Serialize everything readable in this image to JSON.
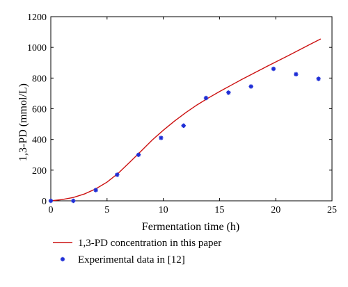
{
  "chart_data": {
    "type": "line",
    "xlabel": "Fermentation time (h)",
    "ylabel": "1,3-PD (mmol/L)",
    "xlim": [
      0,
      25
    ],
    "ylim": [
      0,
      1200
    ],
    "xticks": [
      0,
      5,
      10,
      15,
      20,
      25
    ],
    "yticks": [
      0,
      200,
      400,
      600,
      800,
      1000,
      1200
    ],
    "grid": false,
    "legend_position": "bottom",
    "series": [
      {
        "name": "1,3-PD concentration in this paper",
        "style": "line",
        "color": "#cc1111",
        "x": [
          0,
          1,
          2,
          3,
          4,
          5,
          6,
          7,
          8,
          9,
          10,
          11,
          12,
          13,
          14,
          15,
          16,
          17,
          18,
          19,
          20,
          21,
          22,
          23,
          24
        ],
        "y": [
          0,
          8,
          22,
          45,
          78,
          122,
          180,
          250,
          322,
          395,
          460,
          520,
          575,
          625,
          670,
          712,
          752,
          792,
          830,
          868,
          905,
          942,
          980,
          1018,
          1055
        ]
      },
      {
        "name": "Experimental data in [12]",
        "style": "marker",
        "color": "#1f2fd6",
        "x": [
          0,
          2,
          4,
          5.9,
          7.8,
          9.8,
          11.8,
          13.8,
          15.8,
          17.8,
          19.8,
          21.8,
          23.8
        ],
        "y": [
          0,
          0,
          70,
          170,
          300,
          410,
          490,
          670,
          705,
          745,
          860,
          825,
          795
        ]
      }
    ]
  }
}
